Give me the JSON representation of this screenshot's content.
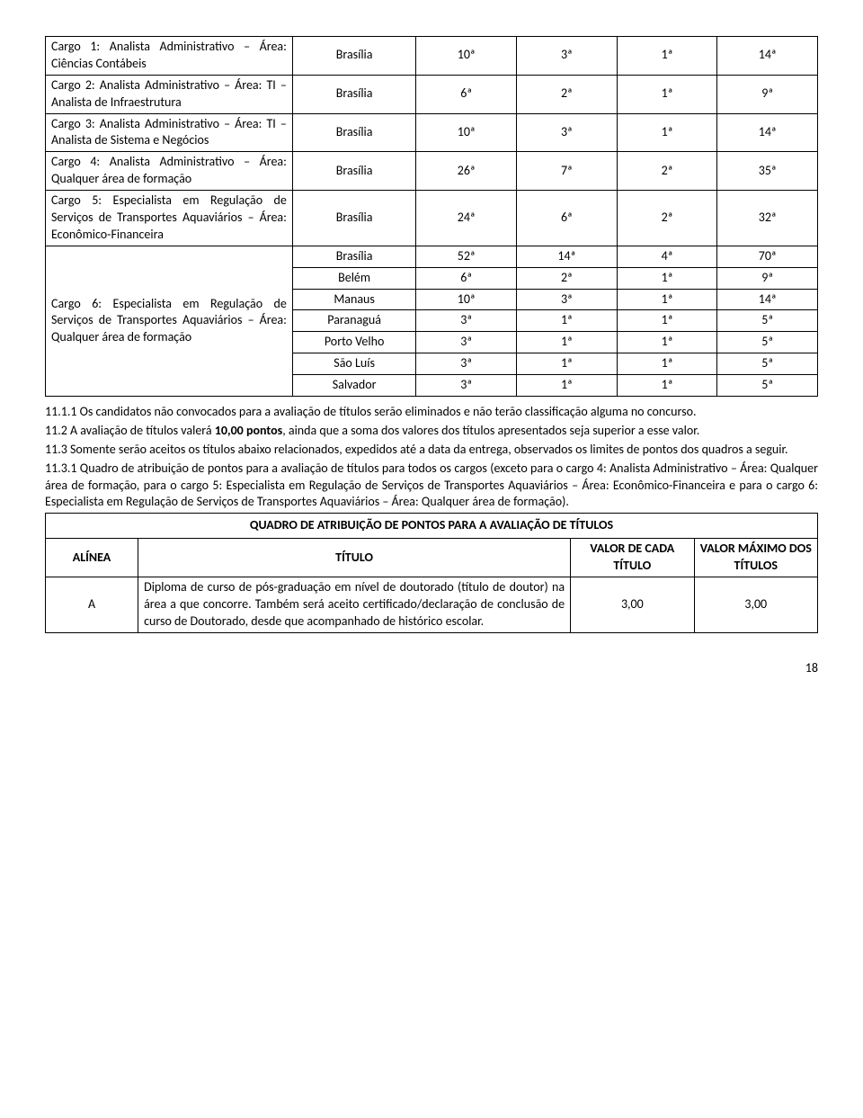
{
  "table1": {
    "rows": [
      {
        "cargo": "Cargo 1: Analista Administrativo – Área: Ciências Contábeis",
        "city": "Brasília",
        "c1": "10ª",
        "c2": "3ª",
        "c3": "1ª",
        "c4": "14ª"
      },
      {
        "cargo": "Cargo 2: Analista Administrativo – Área: TI – Analista de Infraestrutura",
        "city": "Brasília",
        "c1": "6ª",
        "c2": "2ª",
        "c3": "1ª",
        "c4": "9ª"
      },
      {
        "cargo": "Cargo 3: Analista Administrativo – Área: TI – Analista de Sistema e Negócios",
        "city": "Brasília",
        "c1": "10ª",
        "c2": "3ª",
        "c3": "1ª",
        "c4": "14ª"
      },
      {
        "cargo": "Cargo 4: Analista Administrativo – Área: Qualquer área de formação",
        "city": "Brasília",
        "c1": "26ª",
        "c2": "7ª",
        "c3": "2ª",
        "c4": "35ª"
      },
      {
        "cargo": "Cargo 5: Especialista em Regulação de Serviços de Transportes Aquaviários – Área: Econômico-Financeira",
        "city": "Brasília",
        "c1": "24ª",
        "c2": "6ª",
        "c3": "2ª",
        "c4": "32ª"
      }
    ],
    "cargo6Label": "Cargo 6: Especialista em Regulação de Serviços de Transportes Aquaviários – Área: Qualquer área de formação",
    "cargo6": [
      {
        "city": "Brasília",
        "c1": "52ª",
        "c2": "14ª",
        "c3": "4ª",
        "c4": "70ª"
      },
      {
        "city": "Belém",
        "c1": "6ª",
        "c2": "2ª",
        "c3": "1ª",
        "c4": "9ª"
      },
      {
        "city": "Manaus",
        "c1": "10ª",
        "c2": "3ª",
        "c3": "1ª",
        "c4": "14ª"
      },
      {
        "city": "Paranaguá",
        "c1": "3ª",
        "c2": "1ª",
        "c3": "1ª",
        "c4": "5ª"
      },
      {
        "city": "Porto Velho",
        "c1": "3ª",
        "c2": "1ª",
        "c3": "1ª",
        "c4": "5ª"
      },
      {
        "city": "São Luís",
        "c1": "3ª",
        "c2": "1ª",
        "c3": "1ª",
        "c4": "5ª"
      },
      {
        "city": "Salvador",
        "c1": "3ª",
        "c2": "1ª",
        "c3": "1ª",
        "c4": "5ª"
      }
    ]
  },
  "paragraphs": {
    "p1": "11.1.1 Os candidatos não convocados para a avaliação de títulos serão eliminados e não terão classificação alguma no concurso.",
    "p2a": "11.2 A avaliação de títulos valerá ",
    "p2b": "10,00 pontos",
    "p2c": ", ainda que a soma dos valores dos títulos apresentados seja superior a esse valor.",
    "p3": "11.3 Somente serão aceitos os títulos abaixo relacionados, expedidos até a data da entrega, observados os limites de pontos dos quadros a seguir.",
    "p4": "11.3.1 Quadro de atribuição de pontos para a avaliação de títulos para todos os cargos (exceto para o cargo 4: Analista Administrativo – Área: Qualquer área de formação, para o cargo 5: Especialista em Regulação de Serviços de Transportes Aquaviários – Área: Econômico-Financeira e para o cargo 6: Especialista em Regulação de Serviços de Transportes Aquaviários – Área: Qualquer área de formação)."
  },
  "table2": {
    "title": "QUADRO DE ATRIBUIÇÃO DE PONTOS PARA A AVALIAÇÃO DE TÍTULOS",
    "headers": {
      "h1": "ALÍNEA",
      "h2": "TÍTULO",
      "h3": "VALOR DE CADA TÍTULO",
      "h4": "VALOR MÁXIMO DOS TÍTULOS"
    },
    "rowA": {
      "alinea": "A",
      "titulo": "Diploma de curso de pós-graduação em nível de doutorado (título de doutor) na área a que concorre. Também será aceito certificado/declaração de conclusão de curso de Doutorado, desde que acompanhado de histórico escolar.",
      "v1": "3,00",
      "v2": "3,00"
    }
  },
  "pageNumber": "18",
  "colWidths": {
    "cargo": "32%",
    "city": "16%",
    "val": "13%"
  },
  "t2ColWidths": {
    "a": "12%",
    "t": "56%",
    "v": "16%"
  }
}
